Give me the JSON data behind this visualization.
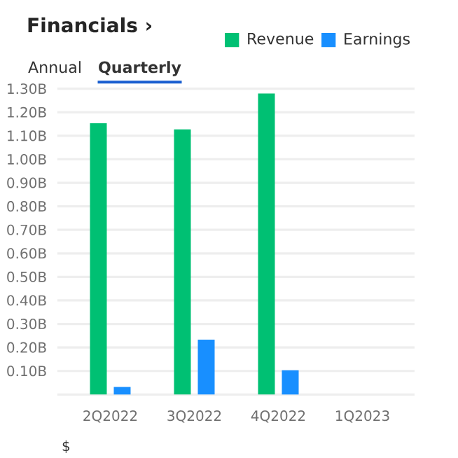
{
  "chart_data": {
    "type": "bar",
    "title": "Financials ›",
    "annotations": [
      "Annual",
      "Quarterly",
      "$"
    ],
    "categories": [
      "2Q2022",
      "3Q2022",
      "4Q2022",
      "1Q2023"
    ],
    "series": [
      {
        "name": "Revenue",
        "color": "#00c073",
        "values": [
          1.153,
          1.127,
          1.28,
          null
        ]
      },
      {
        "name": "Earnings",
        "color": "#188fff",
        "values": [
          0.032,
          0.233,
          0.103,
          null
        ]
      }
    ],
    "ylim": [
      0,
      1.3
    ],
    "yticks": [
      {
        "value": 0,
        "label": null
      },
      {
        "value": 0.1,
        "label": "0.10B"
      },
      {
        "value": 0.2,
        "label": "0.20B"
      },
      {
        "value": 0.3,
        "label": "0.30B"
      },
      {
        "value": 0.4,
        "label": "0.40B"
      },
      {
        "value": 0.5,
        "label": "0.50B"
      },
      {
        "value": 0.6,
        "label": "0.60B"
      },
      {
        "value": 0.7,
        "label": "0.70B"
      },
      {
        "value": 0.8,
        "label": "0.80B"
      },
      {
        "value": 0.9,
        "label": "0.90B"
      },
      {
        "value": 1.0,
        "label": "1.00B"
      },
      {
        "value": 1.1,
        "label": "1.10B"
      },
      {
        "value": 1.2,
        "label": "1.20B"
      },
      {
        "value": 1.3,
        "label": "1.30B"
      }
    ],
    "grid": "y",
    "legend": "top right"
  }
}
